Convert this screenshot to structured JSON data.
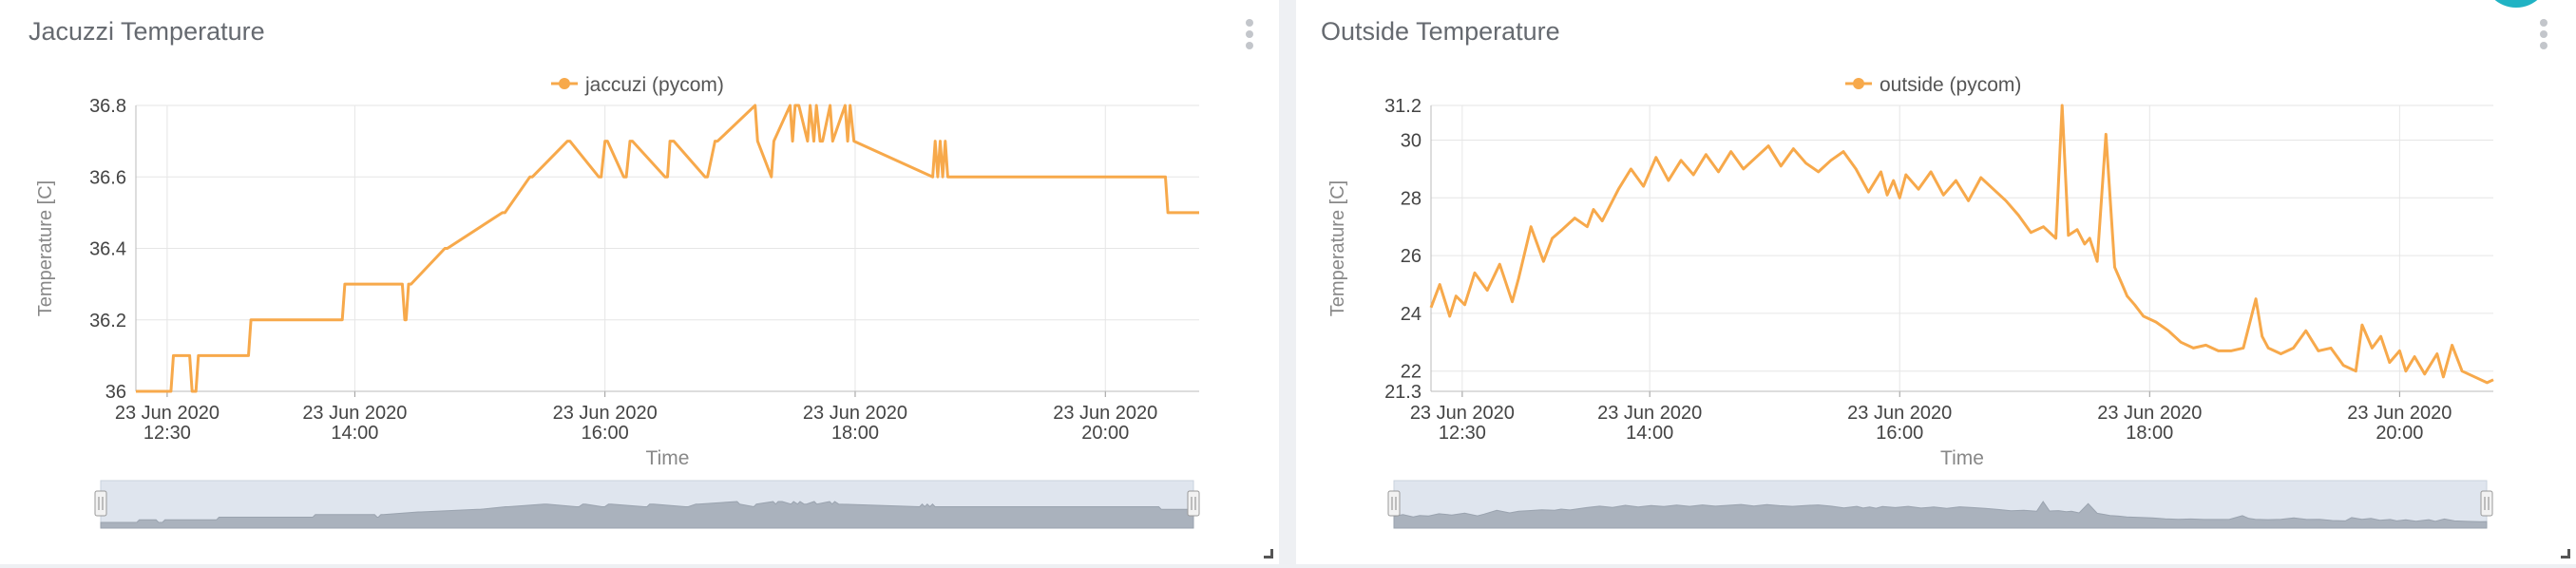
{
  "panels": [
    {
      "title": "Jacuzzi Temperature",
      "menu_icon": "kebab-menu-icon",
      "resize_icon": "resize-handle-icon"
    },
    {
      "title": "Outside Temperature",
      "menu_icon": "kebab-menu-icon",
      "resize_icon": "resize-handle-icon"
    }
  ],
  "chart_data": [
    {
      "type": "line",
      "title": "Jacuzzi Temperature",
      "xlabel": "Time",
      "ylabel": "Temperature [C]",
      "legend": {
        "entries": [
          "jaccuzi  (pycom)"
        ],
        "placement": "top-center"
      },
      "grid": true,
      "color": "#f7a94b",
      "xlim": [
        12.25,
        20.75
      ],
      "ylim": [
        36.0,
        36.8
      ],
      "yticks": [
        {
          "value": 36.0,
          "label": "36"
        },
        {
          "value": 36.2,
          "label": "36.2"
        },
        {
          "value": 36.4,
          "label": "36.4"
        },
        {
          "value": 36.6,
          "label": "36.6"
        },
        {
          "value": 36.8,
          "label": "36.8"
        }
      ],
      "xticks": [
        {
          "value": 12.5,
          "label": [
            "23 Jun 2020",
            "12:30"
          ]
        },
        {
          "value": 14.0,
          "label": [
            "23 Jun 2020",
            "14:00"
          ]
        },
        {
          "value": 16.0,
          "label": [
            "23 Jun 2020",
            "16:00"
          ]
        },
        {
          "value": 18.0,
          "label": [
            "23 Jun 2020",
            "18:00"
          ]
        },
        {
          "value": 20.0,
          "label": [
            "23 Jun 2020",
            "20:00"
          ]
        }
      ],
      "series": [
        {
          "name": "jaccuzi  (pycom)",
          "x": [
            12.25,
            12.53,
            12.55,
            12.68,
            12.7,
            12.73,
            12.75,
            13.15,
            13.17,
            13.9,
            13.92,
            14.38,
            14.4,
            14.41,
            14.43,
            14.45,
            14.72,
            14.74,
            15.18,
            15.2,
            15.4,
            15.42,
            15.7,
            15.72,
            15.95,
            15.97,
            16.0,
            16.02,
            16.15,
            16.17,
            16.2,
            16.22,
            16.48,
            16.5,
            16.52,
            16.55,
            16.8,
            16.82,
            16.88,
            16.9,
            17.2,
            17.22,
            17.33,
            17.35,
            17.48,
            17.5,
            17.52,
            17.55,
            17.62,
            17.64,
            17.67,
            17.69,
            17.72,
            17.74,
            17.8,
            17.82,
            17.92,
            17.94,
            17.96,
            17.99,
            18.62,
            18.64,
            18.66,
            18.68,
            18.7,
            18.72,
            18.74,
            18.76,
            20.48,
            20.5,
            20.75
          ],
          "y": [
            36.0,
            36.0,
            36.1,
            36.1,
            36.0,
            36.0,
            36.1,
            36.1,
            36.2,
            36.2,
            36.3,
            36.3,
            36.2,
            36.2,
            36.3,
            36.3,
            36.4,
            36.4,
            36.5,
            36.5,
            36.6,
            36.6,
            36.7,
            36.7,
            36.6,
            36.6,
            36.7,
            36.7,
            36.6,
            36.6,
            36.7,
            36.7,
            36.6,
            36.6,
            36.7,
            36.7,
            36.6,
            36.6,
            36.7,
            36.7,
            36.8,
            36.7,
            36.6,
            36.7,
            36.8,
            36.7,
            36.8,
            36.8,
            36.7,
            36.8,
            36.7,
            36.8,
            36.7,
            36.7,
            36.8,
            36.7,
            36.8,
            36.7,
            36.8,
            36.7,
            36.6,
            36.7,
            36.6,
            36.7,
            36.6,
            36.7,
            36.6,
            36.6,
            36.6,
            36.5,
            36.5
          ]
        }
      ],
      "navigator_x": [
        12.25,
        20.75
      ]
    },
    {
      "type": "line",
      "title": "Outside Temperature",
      "xlabel": "Time",
      "ylabel": "Temperature [C]",
      "legend": {
        "entries": [
          "outside  (pycom)"
        ],
        "placement": "top-center"
      },
      "grid": true,
      "color": "#f7a94b",
      "xlim": [
        12.25,
        20.75
      ],
      "ylim": [
        21.3,
        31.2
      ],
      "yticks": [
        {
          "value": 21.3,
          "label": "21.3"
        },
        {
          "value": 22,
          "label": "22"
        },
        {
          "value": 24,
          "label": "24"
        },
        {
          "value": 26,
          "label": "26"
        },
        {
          "value": 28,
          "label": "28"
        },
        {
          "value": 30,
          "label": "30"
        },
        {
          "value": 31.2,
          "label": "31.2"
        }
      ],
      "xticks": [
        {
          "value": 12.5,
          "label": [
            "23 Jun 2020",
            "12:30"
          ]
        },
        {
          "value": 14.0,
          "label": [
            "23 Jun 2020",
            "14:00"
          ]
        },
        {
          "value": 16.0,
          "label": [
            "23 Jun 2020",
            "16:00"
          ]
        },
        {
          "value": 18.0,
          "label": [
            "23 Jun 2020",
            "18:00"
          ]
        },
        {
          "value": 20.0,
          "label": [
            "23 Jun 2020",
            "20:00"
          ]
        }
      ],
      "series": [
        {
          "name": "outside  (pycom)",
          "x": [
            12.25,
            12.32,
            12.4,
            12.45,
            12.52,
            12.6,
            12.7,
            12.8,
            12.9,
            12.95,
            13.05,
            13.15,
            13.22,
            13.3,
            13.4,
            13.5,
            13.55,
            13.62,
            13.75,
            13.85,
            13.95,
            14.05,
            14.15,
            14.25,
            14.35,
            14.45,
            14.55,
            14.65,
            14.75,
            14.85,
            14.95,
            15.05,
            15.15,
            15.25,
            15.35,
            15.45,
            15.55,
            15.65,
            15.75,
            15.85,
            15.9,
            15.95,
            16.0,
            16.05,
            16.15,
            16.25,
            16.35,
            16.45,
            16.55,
            16.65,
            16.75,
            16.85,
            16.95,
            17.05,
            17.15,
            17.25,
            17.3,
            17.35,
            17.42,
            17.48,
            17.52,
            17.58,
            17.65,
            17.72,
            17.78,
            17.82,
            17.88,
            17.95,
            18.05,
            18.15,
            18.25,
            18.35,
            18.45,
            18.55,
            18.65,
            18.75,
            18.85,
            18.9,
            18.95,
            19.05,
            19.15,
            19.25,
            19.35,
            19.45,
            19.55,
            19.65,
            19.7,
            19.78,
            19.85,
            19.92,
            20.0,
            20.05,
            20.12,
            20.2,
            20.3,
            20.35,
            20.42,
            20.5,
            20.6,
            20.7,
            20.75
          ],
          "y": [
            24.2,
            25.0,
            23.9,
            24.6,
            24.3,
            25.4,
            24.8,
            25.7,
            24.4,
            25.2,
            27.0,
            25.8,
            26.6,
            26.9,
            27.3,
            27.0,
            27.6,
            27.2,
            28.3,
            29.0,
            28.4,
            29.4,
            28.6,
            29.3,
            28.8,
            29.5,
            28.9,
            29.6,
            29.0,
            29.4,
            29.8,
            29.1,
            29.7,
            29.2,
            28.9,
            29.3,
            29.6,
            29.0,
            28.2,
            28.9,
            28.1,
            28.6,
            28.0,
            28.8,
            28.3,
            28.9,
            28.1,
            28.6,
            27.9,
            28.7,
            28.3,
            27.9,
            27.4,
            26.8,
            27.0,
            26.6,
            31.2,
            26.7,
            26.9,
            26.4,
            26.6,
            25.8,
            30.2,
            25.6,
            25.0,
            24.6,
            24.3,
            23.9,
            23.7,
            23.4,
            23.0,
            22.8,
            22.9,
            22.7,
            22.7,
            22.8,
            24.5,
            23.2,
            22.8,
            22.6,
            22.8,
            23.4,
            22.7,
            22.8,
            22.2,
            22.0,
            23.6,
            22.8,
            23.2,
            22.3,
            22.7,
            22.0,
            22.5,
            21.9,
            22.6,
            21.8,
            22.9,
            22.0,
            21.8,
            21.6,
            21.7
          ]
        }
      ],
      "navigator_x": [
        12.25,
        20.75
      ]
    }
  ]
}
